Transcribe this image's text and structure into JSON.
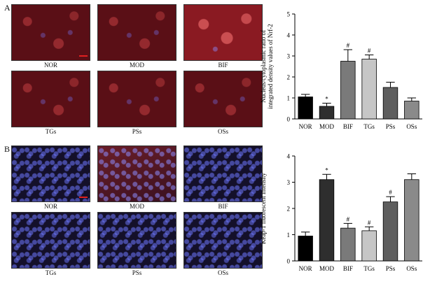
{
  "panels": {
    "A": {
      "letter": "A",
      "images": [
        {
          "label": "NOR",
          "style": "red"
        },
        {
          "label": "MOD",
          "style": "red"
        },
        {
          "label": "BIF",
          "style": "bright"
        },
        {
          "label": "TGs",
          "style": "red"
        },
        {
          "label": "PSs",
          "style": "red"
        },
        {
          "label": "OSs",
          "style": "red"
        }
      ]
    },
    "B": {
      "letter": "B",
      "images": [
        {
          "label": "NOR",
          "style": "blue"
        },
        {
          "label": "MOD",
          "style": "bluered"
        },
        {
          "label": "BIF",
          "style": "blue"
        },
        {
          "label": "TGs",
          "style": "blue"
        },
        {
          "label": "PSs",
          "style": "blue"
        },
        {
          "label": "OSs",
          "style": "blue"
        }
      ]
    }
  },
  "chart_data": [
    {
      "type": "bar",
      "ylabel": "Nucleus/cytoplasmic ratio of integrated density values of Nrf-2",
      "categories": [
        "NOR",
        "MOD",
        "BIF",
        "TGs",
        "PSs",
        "OSs"
      ],
      "values": [
        1.05,
        0.6,
        2.75,
        2.85,
        1.5,
        0.85
      ],
      "errors": [
        0.12,
        0.15,
        0.55,
        0.2,
        0.25,
        0.15
      ],
      "annotations": [
        "",
        "*",
        "#",
        "#",
        "",
        ""
      ],
      "ylim": [
        0,
        5
      ],
      "yticks": [
        0,
        1,
        2,
        3,
        4,
        5
      ],
      "colors": [
        "#000000",
        "#2e2e2e",
        "#7a7a7a",
        "#c6c6c6",
        "#5e5e5e",
        "#8a8a8a"
      ]
    },
    {
      "type": "bar",
      "ylabel": "Keap-1 fluorescent intensity",
      "categories": [
        "NOR",
        "MOD",
        "BIF",
        "TGs",
        "PSs",
        "OSs"
      ],
      "values": [
        0.95,
        3.1,
        1.25,
        1.15,
        2.25,
        3.1
      ],
      "errors": [
        0.15,
        0.2,
        0.18,
        0.15,
        0.2,
        0.22
      ],
      "annotations": [
        "",
        "*",
        "#",
        "#",
        "#",
        ""
      ],
      "ylim": [
        0,
        4
      ],
      "yticks": [
        0,
        1,
        2,
        3,
        4
      ],
      "colors": [
        "#000000",
        "#2e2e2e",
        "#7a7a7a",
        "#c6c6c6",
        "#5e5e5e",
        "#8a8a8a"
      ]
    }
  ]
}
